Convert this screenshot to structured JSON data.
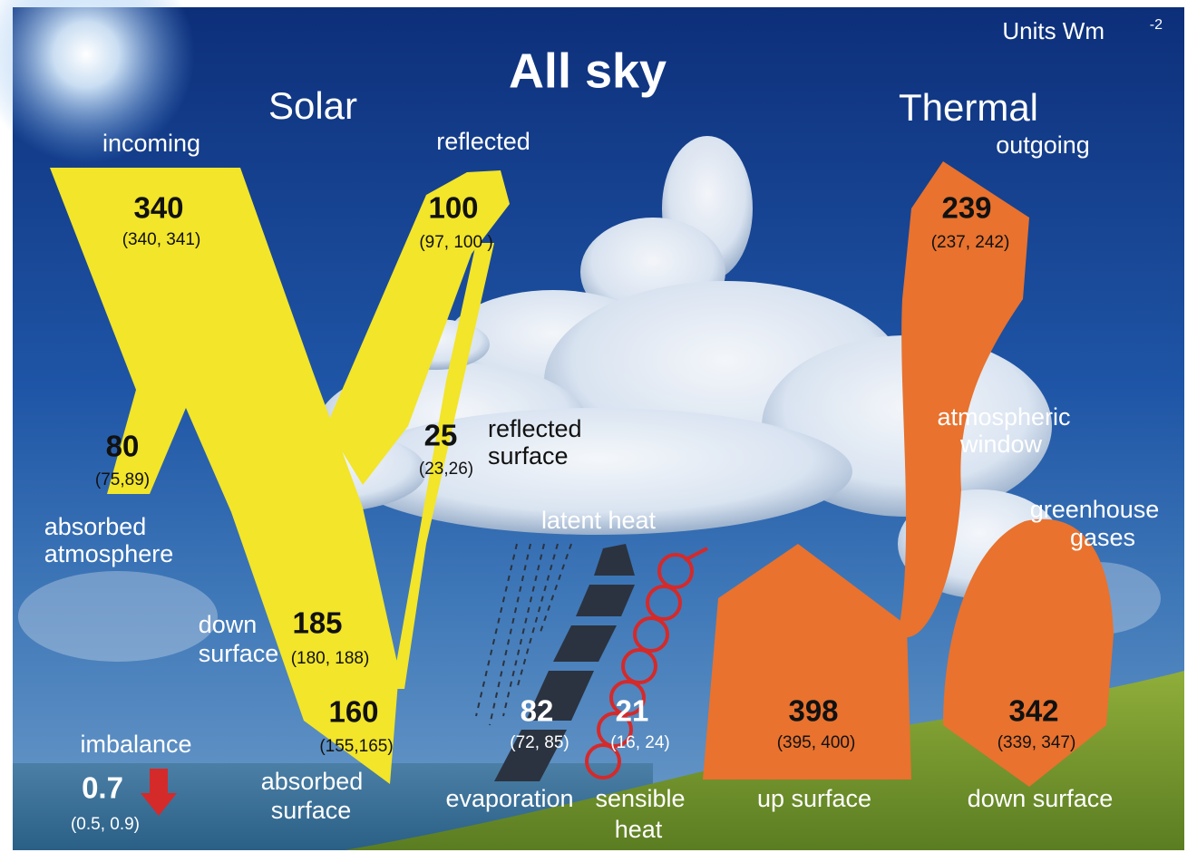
{
  "title": "All sky",
  "units": {
    "text": "Units Wm",
    "exponent": "-2"
  },
  "headings": {
    "solar": "Solar",
    "thermal": "Thermal"
  },
  "solar": {
    "incoming": {
      "label": [
        "incoming"
      ],
      "value": 340,
      "range": "(340, 341)"
    },
    "reflected": {
      "label": [
        "reflected"
      ],
      "value": 100,
      "range": "(97, 100 )"
    },
    "absorbed_atmosphere": {
      "label": [
        "absorbed",
        "atmosphere"
      ],
      "value": 80,
      "range": "(75,89)"
    },
    "reflected_surface": {
      "label": [
        "reflected",
        "surface"
      ],
      "value": 25,
      "range": "(23,26)"
    },
    "down_surface": {
      "label": [
        "down",
        "surface"
      ],
      "value": 185,
      "range": "(180, 188)"
    },
    "absorbed_surface": {
      "label": [
        "absorbed",
        "surface"
      ],
      "value": 160,
      "range": "(155,165)"
    }
  },
  "imbalance": {
    "label": [
      "imbalance"
    ],
    "value": 0.7,
    "range": "(0.5, 0.9)"
  },
  "latent_heat": {
    "label": [
      "latent heat"
    ]
  },
  "evaporation": {
    "label": [
      "evaporation"
    ],
    "value": 82,
    "range": "(72, 85)"
  },
  "sensible_heat": {
    "label": [
      "sensible",
      "heat"
    ],
    "value": 21,
    "range": "(16, 24)"
  },
  "thermal": {
    "outgoing": {
      "label": [
        "outgoing"
      ],
      "value": 239,
      "range": "(237, 242)"
    },
    "atmospheric_window": {
      "label": [
        "atmospheric",
        "window"
      ]
    },
    "greenhouse_gases": {
      "label": [
        "greenhouse",
        "gases"
      ]
    },
    "up_surface": {
      "label": [
        "up surface"
      ],
      "value": 398,
      "range": "(395, 400)"
    },
    "down_surface": {
      "label": [
        "down surface"
      ],
      "value": 342,
      "range": "(339, 347)"
    }
  }
}
